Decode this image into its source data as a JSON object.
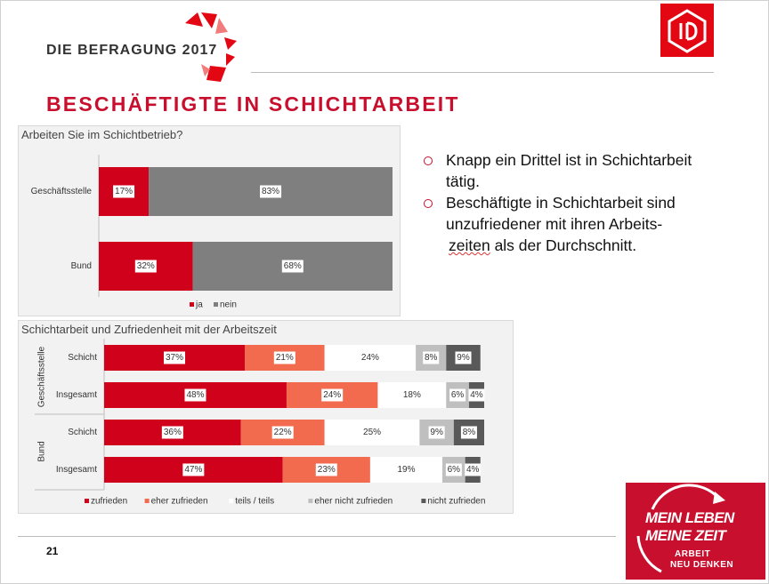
{
  "header": {
    "brand_text": "DIE BEFRAGUNG 2017",
    "title": "BESCHÄFTIGTE IN SCHICHTARBEIT",
    "logo_name": "ig-metall-logo"
  },
  "bullets": [
    {
      "lines": [
        "Knapp ein Drittel ist in Schichtarbeit",
        "tätig."
      ]
    },
    {
      "lines": [
        "Beschäftigte in Schichtarbeit sind",
        "unzufriedener mit ihren Arbeits-",
        "zeiten als der Durchschnitt."
      ]
    }
  ],
  "footer": {
    "page_number": "21",
    "campaign_line1": "MEIN LEBEN",
    "campaign_line2": "MEINE ZEIT",
    "campaign_line3": "ARBEIT",
    "campaign_line4": "NEU DENKEN"
  },
  "colors": {
    "ja": "#d0021b",
    "nein": "#7f7f7f",
    "zufrieden": "#d0021b",
    "eher_zufrieden": "#f26b4f",
    "teils": "#ffffff",
    "eher_nicht": "#bfbfbf",
    "nicht": "#595959",
    "brand_red": "#c8102e"
  },
  "chart_data": [
    {
      "type": "bar",
      "orientation": "horizontal",
      "stacked": true,
      "title": "Arbeiten Sie im Schichtbetrieb?",
      "categories": [
        "Geschäftsstelle",
        "Bund"
      ],
      "series": [
        {
          "name": "ja",
          "values": [
            17,
            32
          ],
          "labels": [
            "17%",
            "32%"
          ]
        },
        {
          "name": "nein",
          "values": [
            83,
            68
          ],
          "labels": [
            "83%",
            "68%"
          ]
        }
      ],
      "legend": "bottom"
    },
    {
      "type": "bar",
      "orientation": "horizontal",
      "stacked": true,
      "title": "Schichtarbeit und Zufriedenheit mit der Arbeitszeit",
      "groups": [
        {
          "name": "Geschäftsstelle",
          "categories": [
            "Schicht",
            "Insgesamt"
          ]
        },
        {
          "name": "Bund",
          "categories": [
            "Schicht",
            "Insgesamt"
          ]
        }
      ],
      "series": [
        {
          "name": "zufrieden",
          "values": [
            37,
            48,
            36,
            47
          ],
          "labels": [
            "37%",
            "48%",
            "36%",
            "47%"
          ]
        },
        {
          "name": "eher zufrieden",
          "values": [
            21,
            24,
            22,
            23
          ],
          "labels": [
            "21%",
            "24%",
            "22%",
            "23%"
          ]
        },
        {
          "name": "teils / teils",
          "values": [
            24,
            18,
            25,
            19
          ],
          "labels": [
            "24%",
            "18%",
            "25%",
            "19%"
          ]
        },
        {
          "name": "eher nicht zufrieden",
          "values": [
            8,
            6,
            9,
            6
          ],
          "labels": [
            "8%",
            "6%",
            "9%",
            "6%"
          ]
        },
        {
          "name": "nicht zufrieden",
          "values": [
            9,
            4,
            8,
            4
          ],
          "labels": [
            "9%",
            "4%",
            "8%",
            "4%"
          ]
        }
      ],
      "legend": "bottom"
    }
  ]
}
